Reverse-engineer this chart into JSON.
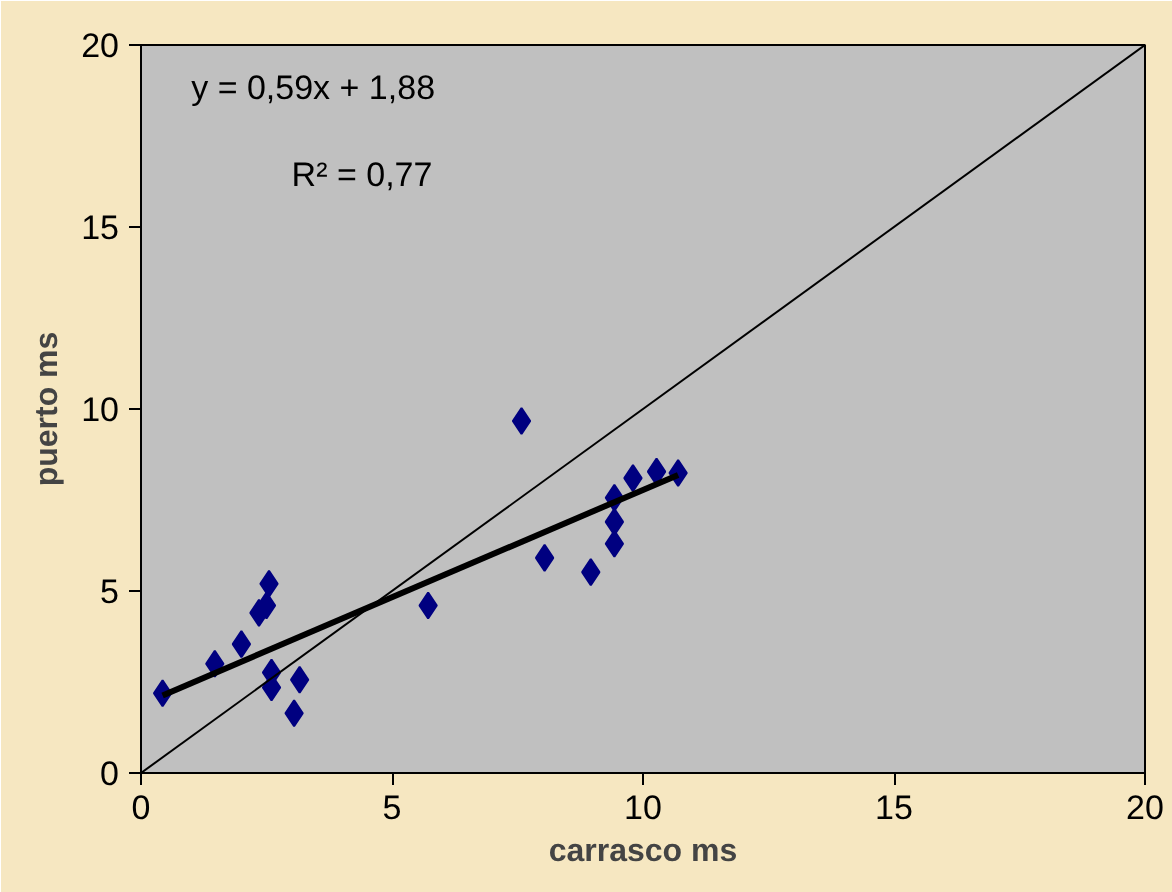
{
  "chart_data": {
    "type": "scatter",
    "xlabel": "carrasco ms",
    "ylabel": "puerto ms",
    "xlim": [
      0,
      20
    ],
    "ylim": [
      0,
      20
    ],
    "xticks": [
      0,
      5,
      10,
      15,
      20
    ],
    "yticks": [
      0,
      5,
      10,
      15,
      20
    ],
    "grid": false,
    "annotations": [
      "y = 0,59x + 1,88",
      "R² = 0,77"
    ],
    "series": [
      {
        "marker": "diamond",
        "color": "#000080",
        "x": [
          0.43,
          1.47,
          2.0,
          2.35,
          2.5,
          2.55,
          2.6,
          2.6,
          3.16,
          3.05,
          5.72,
          7.58,
          8.04,
          8.96,
          9.43,
          9.43,
          9.43,
          9.8,
          10.27,
          10.7
        ],
        "values": [
          2.19,
          3.0,
          3.54,
          4.4,
          4.6,
          5.2,
          2.76,
          2.35,
          2.56,
          1.64,
          4.6,
          9.67,
          5.91,
          5.52,
          7.56,
          6.9,
          6.3,
          8.1,
          8.28,
          8.24
        ]
      },
      {
        "type": "line",
        "color": "#000000",
        "x": [
          0.43,
          10.7
        ],
        "values": [
          2.13,
          8.19
        ],
        "marker": "none"
      },
      {
        "type": "line",
        "color": "#000000",
        "x": [
          0,
          20
        ],
        "values": [
          0,
          20
        ],
        "marker": "none"
      }
    ]
  }
}
